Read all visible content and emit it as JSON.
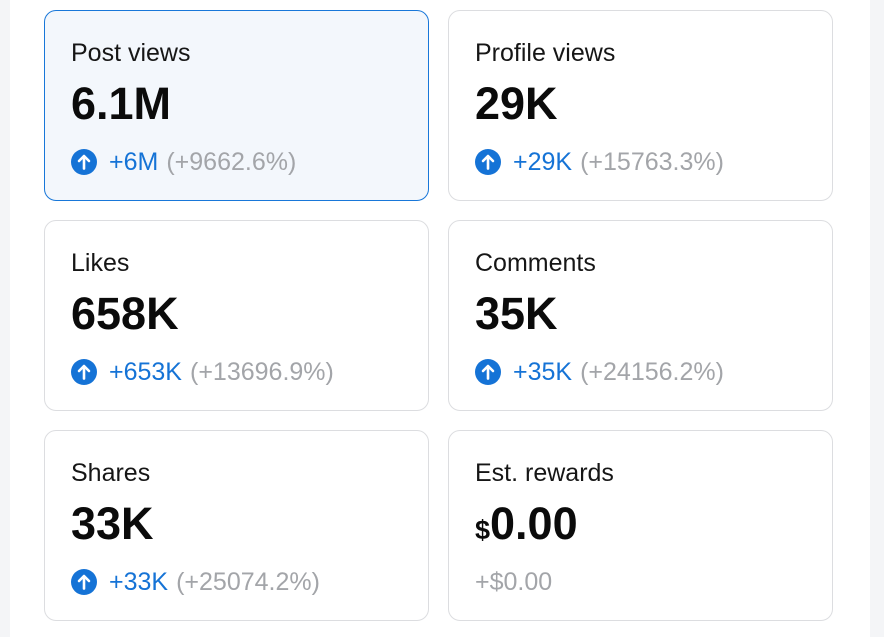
{
  "colors": {
    "accent": "#1573d6",
    "muted": "#a3a5a9",
    "selected_bg": "#f3f7fc",
    "border": "#dcdde0"
  },
  "cards": {
    "post_views": {
      "title": "Post views",
      "value": "6.1M",
      "delta": "+6M",
      "pct": "(+9662.6%)",
      "icon": "arrow-up-circle-icon",
      "selected": true
    },
    "profile_views": {
      "title": "Profile views",
      "value": "29K",
      "delta": "+29K",
      "pct": "(+15763.3%)",
      "icon": "arrow-up-circle-icon"
    },
    "likes": {
      "title": "Likes",
      "value": "658K",
      "delta": "+653K",
      "pct": "(+13696.9%)",
      "icon": "arrow-up-circle-icon"
    },
    "comments": {
      "title": "Comments",
      "value": "35K",
      "delta": "+35K",
      "pct": "(+24156.2%)",
      "icon": "arrow-up-circle-icon"
    },
    "shares": {
      "title": "Shares",
      "value": "33K",
      "delta": "+33K",
      "pct": "(+25074.2%)",
      "icon": "arrow-up-circle-icon"
    },
    "est_rewards": {
      "title": "Est. rewards",
      "currency": "$",
      "value": "0.00",
      "delta": "+$0.00"
    }
  }
}
